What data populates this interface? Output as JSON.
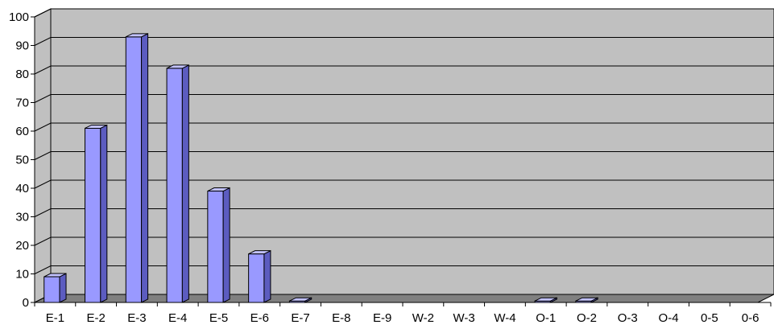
{
  "chart_data": {
    "type": "bar",
    "categories": [
      "E-1",
      "E-2",
      "E-3",
      "E-4",
      "E-5",
      "E-6",
      "E-7",
      "E-8",
      "E-9",
      "W-2",
      "W-3",
      "W-4",
      "O-1",
      "O-2",
      "O-3",
      "O-4",
      "0-5",
      "0-6"
    ],
    "series": [
      {
        "values": [
          9,
          61,
          93,
          82,
          39,
          17,
          0.5,
          0,
          0,
          0,
          0,
          0,
          0.5,
          0.5,
          0,
          0,
          0,
          0
        ]
      }
    ],
    "ylim": [
      0,
      100
    ],
    "yticks": [
      0,
      10,
      20,
      30,
      40,
      50,
      60,
      70,
      80,
      90,
      100
    ],
    "grid": true,
    "colors": {
      "bar_front": "#9999ff",
      "bar_side": "#5c5cc0",
      "bar_top": "#c2c2ff",
      "plot_back": "#c0c0c0",
      "floor": "#808080",
      "gridline": "#000000",
      "outline": "#000000"
    }
  }
}
